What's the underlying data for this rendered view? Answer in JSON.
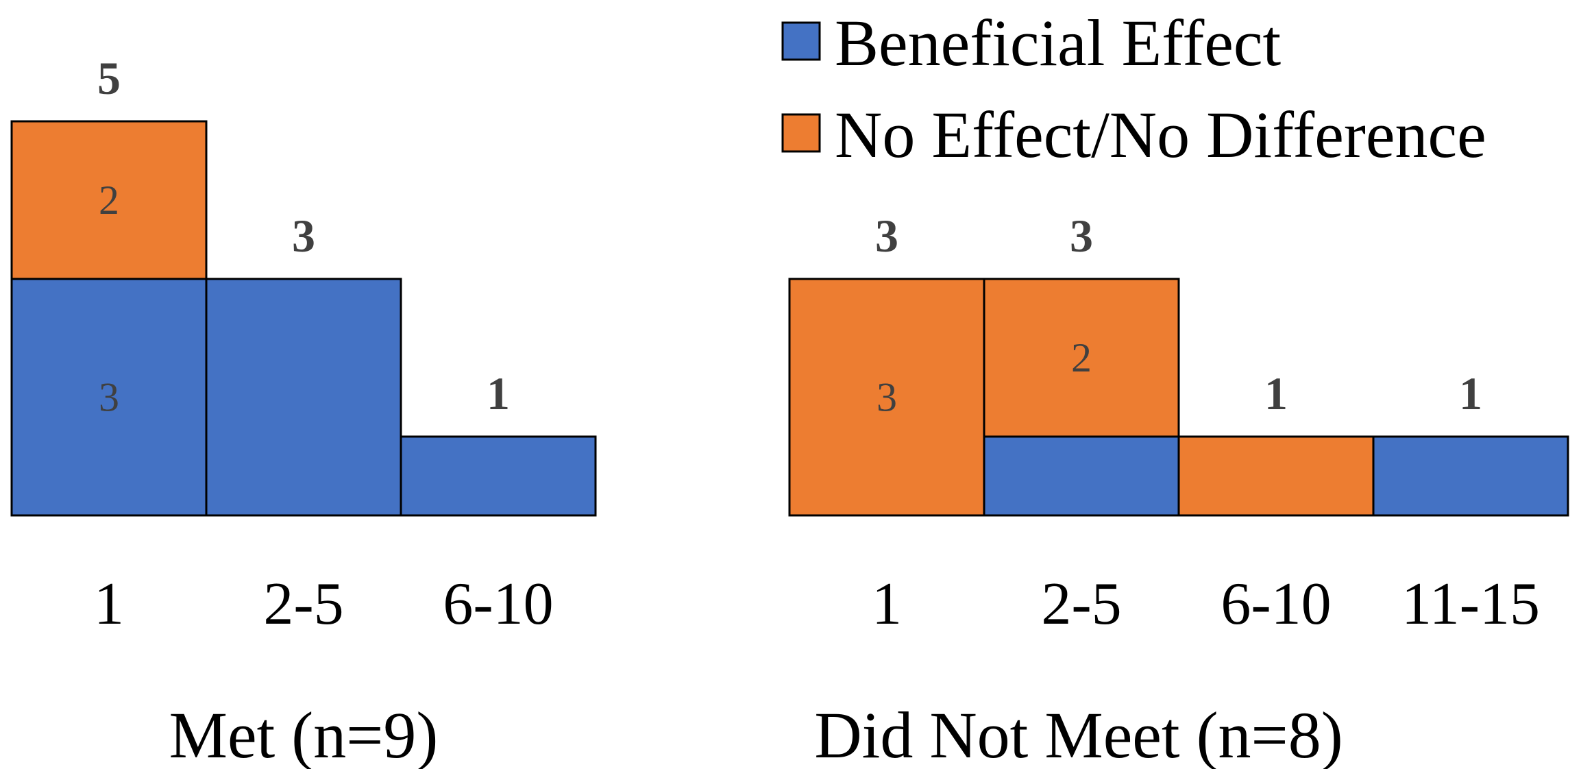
{
  "chart_data": {
    "type": "bar",
    "stacked": true,
    "colors": {
      "Beneficial Effect": "#4472C4",
      "No Effect/No Difference": "#ED7D31"
    },
    "legend": {
      "position": "top-right",
      "entries": [
        {
          "name": "Beneficial Effect",
          "color": "#4472C4"
        },
        {
          "name": "No Effect/No Difference",
          "color": "#ED7D31"
        }
      ]
    },
    "groups": [
      {
        "label": "Met (n=9)",
        "categories": [
          "1",
          "2-5",
          "6-10"
        ],
        "series": [
          {
            "name": "Beneficial Effect",
            "values": [
              3,
              3,
              1
            ]
          },
          {
            "name": "No Effect/No Difference",
            "values": [
              2,
              0,
              0
            ]
          }
        ],
        "totals": [
          5,
          3,
          1
        ],
        "segment_labels": {
          "Beneficial Effect": [
            "3",
            "",
            ""
          ],
          "No Effect/No Difference": [
            "2",
            "",
            ""
          ]
        }
      },
      {
        "label": "Did Not Meet (n=8)",
        "categories": [
          "1",
          "2-5",
          "6-10",
          "11-15"
        ],
        "series": [
          {
            "name": "Beneficial Effect",
            "values": [
              0,
              1,
              0,
              1
            ]
          },
          {
            "name": "No Effect/No Difference",
            "values": [
              3,
              2,
              1,
              0
            ]
          }
        ],
        "totals": [
          3,
          3,
          1,
          1
        ],
        "segment_labels": {
          "Beneficial Effect": [
            "",
            "",
            "",
            ""
          ],
          "No Effect/No Difference": [
            "3",
            "2",
            "",
            ""
          ]
        }
      }
    ],
    "ylim": [
      0,
      5
    ]
  }
}
